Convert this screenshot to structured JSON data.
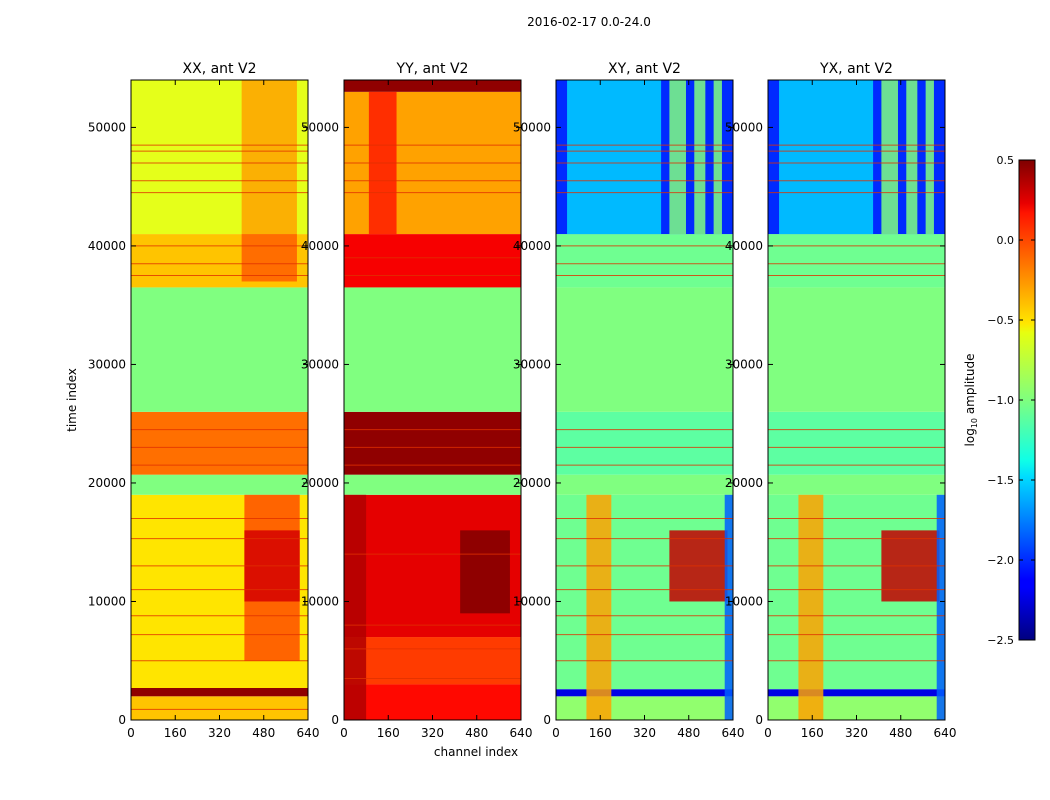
{
  "chart_data": {
    "type": "heatmap",
    "suptitle": "2016-02-17 0.0-24.0",
    "xlabel": "channel index",
    "ylabel": "time index",
    "xlim": [
      0,
      640
    ],
    "ylim": [
      0,
      54000
    ],
    "xticks": [
      "0",
      "160",
      "320",
      "480",
      "640"
    ],
    "yticks": [
      "0",
      "10000",
      "20000",
      "30000",
      "40000",
      "50000"
    ],
    "colorbar": {
      "label": "log10 amplitude",
      "label_main": "log",
      "label_sub": "10",
      "label_rest": " amplitude",
      "range": [
        -2.5,
        0.5
      ],
      "ticks": [
        "0.5",
        "0.0",
        "−0.5",
        "−1.0",
        "−1.5",
        "−2.0",
        "−2.5"
      ],
      "colormap": "jet"
    },
    "panels": [
      {
        "title": "XX, ant V2",
        "time_blocks": [
          {
            "t": [
              0,
              2000
            ],
            "v": -0.45
          },
          {
            "t": [
              2000,
              2700
            ],
            "v": 0.45
          },
          {
            "t": [
              2700,
              19000
            ],
            "v": -0.55
          },
          {
            "t": [
              19000,
              20700
            ],
            "v": -1.0
          },
          {
            "t": [
              20700,
              26000
            ],
            "v": -0.2
          },
          {
            "t": [
              26000,
              36500
            ],
            "v": -1.0
          },
          {
            "t": [
              36500,
              41000
            ],
            "v": -0.45
          },
          {
            "t": [
              41000,
              54000
            ],
            "v": -0.7
          }
        ],
        "channel_features": [
          {
            "ch": [
              410,
              610
            ],
            "t": [
              5000,
              19000
            ],
            "dv": 0.45
          },
          {
            "ch": [
              410,
              610
            ],
            "t": [
              10000,
              16000
            ],
            "dv": 0.8
          },
          {
            "ch": [
              400,
              600
            ],
            "t": [
              41000,
              54000
            ],
            "dv": 0.35
          },
          {
            "ch": [
              400,
              600
            ],
            "t": [
              37000,
              41000
            ],
            "dv": 0.3
          }
        ],
        "hlines_t": [
          900,
          5000,
          7200,
          8800,
          11000,
          13000,
          15300,
          17000,
          21500,
          23000,
          24500,
          37500,
          38500,
          40000,
          44500,
          45500,
          47000,
          48000,
          48500
        ]
      },
      {
        "title": "YY, ant V2",
        "time_blocks": [
          {
            "t": [
              0,
              3000
            ],
            "v": 0.1
          },
          {
            "t": [
              3000,
              7000
            ],
            "v": -0.05
          },
          {
            "t": [
              7000,
              19000
            ],
            "v": 0.2
          },
          {
            "t": [
              19000,
              20700
            ],
            "v": -1.0
          },
          {
            "t": [
              20700,
              26000
            ],
            "v": 0.45
          },
          {
            "t": [
              26000,
              36500
            ],
            "v": -1.0
          },
          {
            "t": [
              36500,
              41000
            ],
            "v": 0.15
          },
          {
            "t": [
              41000,
              53000
            ],
            "v": -0.35
          },
          {
            "t": [
              53000,
              54000
            ],
            "v": 0.45
          }
        ],
        "channel_features": [
          {
            "ch": [
              90,
              190
            ],
            "t": [
              41000,
              53000
            ],
            "dv": 0.4
          },
          {
            "ch": [
              420,
              600
            ],
            "t": [
              9000,
              16000
            ],
            "dv": 0.3
          },
          {
            "ch": [
              0,
              80
            ],
            "t": [
              0,
              19000
            ],
            "dv": 0.25
          }
        ],
        "hlines_t": [
          3500,
          6000,
          8000,
          14000,
          21500,
          23000,
          24500,
          37500,
          39000,
          44500,
          45500,
          47000,
          48500
        ]
      },
      {
        "title": "XY, ant V2",
        "time_blocks": [
          {
            "t": [
              0,
              2000
            ],
            "v": -0.95
          },
          {
            "t": [
              2000,
              2600
            ],
            "v": -2.2
          },
          {
            "t": [
              2600,
              19000
            ],
            "v": -1.05
          },
          {
            "t": [
              19000,
              20700
            ],
            "v": -1.0
          },
          {
            "t": [
              20700,
              26000
            ],
            "v": -1.1
          },
          {
            "t": [
              26000,
              36500
            ],
            "v": -1.0
          },
          {
            "t": [
              36500,
              41000
            ],
            "v": -1.05
          },
          {
            "t": [
              41000,
              54000
            ],
            "v": -2.0
          }
        ],
        "channel_features": [
          {
            "ch": [
              110,
              200
            ],
            "t": [
              0,
              19000
            ],
            "dv": 0.6
          },
          {
            "ch": [
              410,
              620
            ],
            "t": [
              10000,
              16000
            ],
            "dv": 1.35
          },
          {
            "ch": [
              410,
              470
            ],
            "t": [
              41000,
              54000
            ],
            "dv": 1.0
          },
          {
            "ch": [
              500,
              540
            ],
            "t": [
              41000,
              54000
            ],
            "dv": 1.0
          },
          {
            "ch": [
              570,
              600
            ],
            "t": [
              41000,
              54000
            ],
            "dv": 1.0
          },
          {
            "ch": [
              610,
              640
            ],
            "t": [
              0,
              19000
            ],
            "dv": -0.9
          },
          {
            "ch": [
              40,
              380
            ],
            "t": [
              41000,
              54000
            ],
            "dv": 0.5
          }
        ],
        "hlines_t": [
          5000,
          7200,
          8800,
          11000,
          13000,
          15300,
          17000,
          21500,
          23000,
          24500,
          37500,
          38500,
          40000,
          44500,
          45500,
          47000,
          48000,
          48500
        ]
      },
      {
        "title": "YX, ant V2",
        "time_blocks": [
          {
            "t": [
              0,
              2000
            ],
            "v": -0.95
          },
          {
            "t": [
              2000,
              2600
            ],
            "v": -2.2
          },
          {
            "t": [
              2600,
              19000
            ],
            "v": -1.05
          },
          {
            "t": [
              19000,
              20700
            ],
            "v": -1.0
          },
          {
            "t": [
              20700,
              26000
            ],
            "v": -1.1
          },
          {
            "t": [
              26000,
              36500
            ],
            "v": -1.0
          },
          {
            "t": [
              36500,
              41000
            ],
            "v": -1.05
          },
          {
            "t": [
              41000,
              54000
            ],
            "v": -2.0
          }
        ],
        "channel_features": [
          {
            "ch": [
              110,
              200
            ],
            "t": [
              0,
              19000
            ],
            "dv": 0.6
          },
          {
            "ch": [
              410,
              620
            ],
            "t": [
              10000,
              16000
            ],
            "dv": 1.35
          },
          {
            "ch": [
              410,
              470
            ],
            "t": [
              41000,
              54000
            ],
            "dv": 1.0
          },
          {
            "ch": [
              500,
              540
            ],
            "t": [
              41000,
              54000
            ],
            "dv": 1.0
          },
          {
            "ch": [
              570,
              600
            ],
            "t": [
              41000,
              54000
            ],
            "dv": 1.0
          },
          {
            "ch": [
              610,
              640
            ],
            "t": [
              0,
              19000
            ],
            "dv": -0.9
          },
          {
            "ch": [
              40,
              380
            ],
            "t": [
              41000,
              54000
            ],
            "dv": 0.5
          }
        ],
        "hlines_t": [
          5000,
          7200,
          8800,
          11000,
          13000,
          15300,
          17000,
          21500,
          23000,
          24500,
          37500,
          38500,
          40000,
          44500,
          45500,
          47000,
          48000,
          48500
        ]
      }
    ]
  }
}
